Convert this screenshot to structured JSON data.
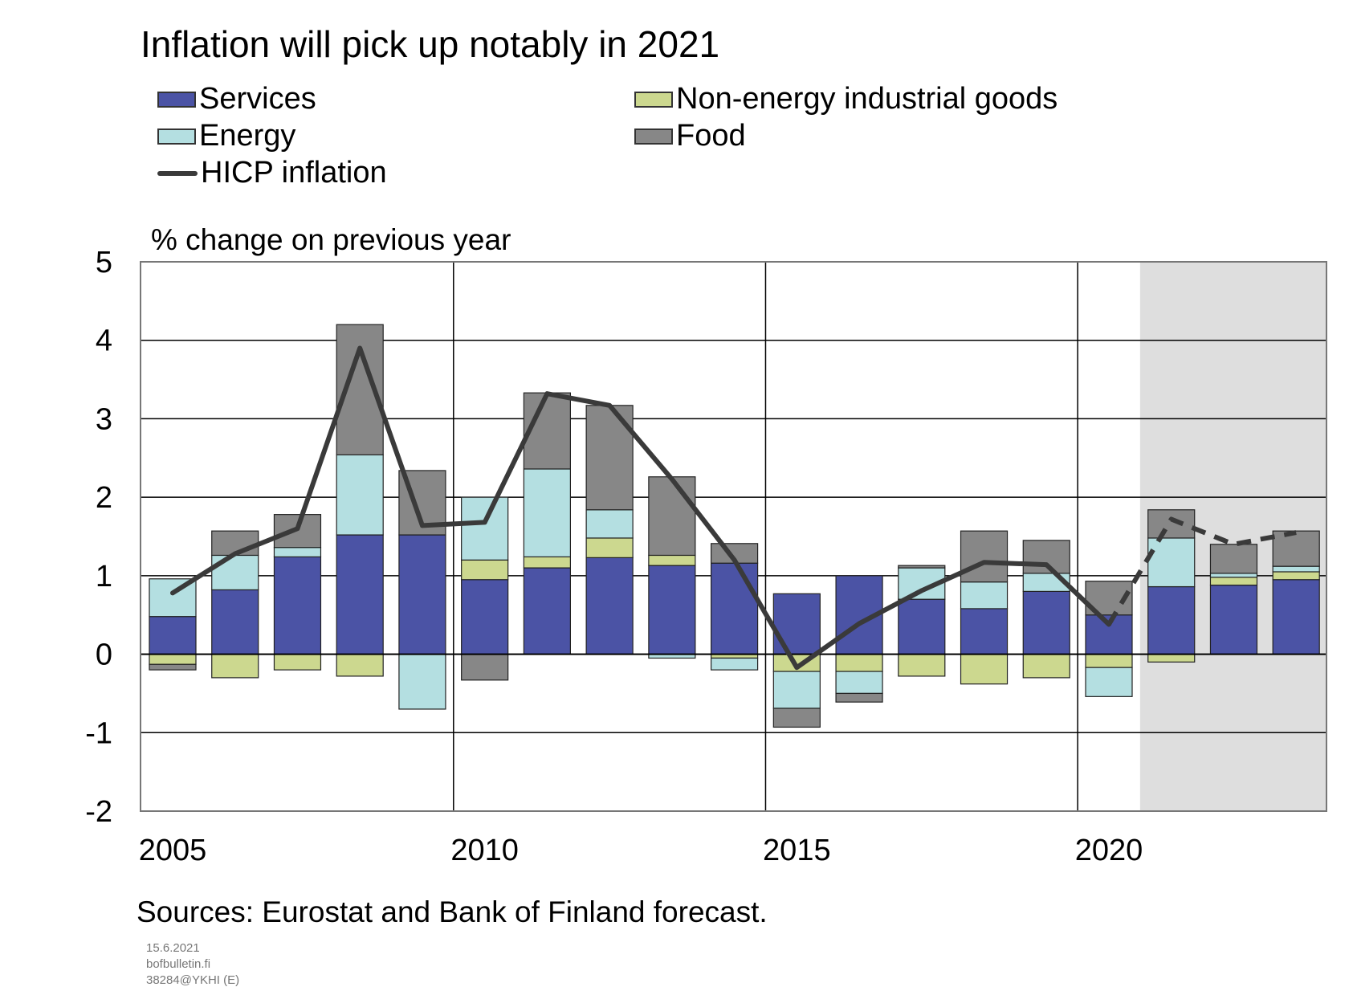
{
  "title": "Inflation will pick up notably in 2021",
  "unit_label": "% change on previous year",
  "source": "Sources: Eurostat and Bank of Finland forecast.",
  "footer": {
    "date": "15.6.2021",
    "site": "bofbulletin.fi",
    "code": "38284@YKHI  (E)"
  },
  "colors": {
    "services": "#4b53a5",
    "non_energy": "#ccd88f",
    "energy": "#b4dfe1",
    "food": "#878787",
    "hicp": "#3a3a3a",
    "forecast_shade": "#dedede"
  },
  "chart_data": {
    "type": "bar",
    "stacked": true,
    "title": "Inflation will pick up notably in 2021",
    "ylabel": "% change on previous year",
    "ylim": [
      -2,
      5
    ],
    "yticks": [
      -2,
      -1,
      0,
      1,
      2,
      3,
      4,
      5
    ],
    "xticks": [
      2005,
      2010,
      2015,
      2020
    ],
    "grid": true,
    "legend_position": "top",
    "categories": [
      2005,
      2006,
      2007,
      2008,
      2009,
      2010,
      2011,
      2012,
      2013,
      2014,
      2015,
      2016,
      2017,
      2018,
      2019,
      2020,
      2021,
      2022,
      2023
    ],
    "forecast_from": 2021,
    "series": [
      {
        "name": "Services",
        "key": "services",
        "values": [
          0.48,
          0.82,
          1.24,
          1.52,
          1.52,
          0.95,
          1.1,
          1.23,
          1.13,
          1.16,
          0.77,
          1.0,
          0.7,
          0.58,
          0.8,
          0.5,
          0.86,
          0.88,
          0.95
        ]
      },
      {
        "name": "Non-energy industrial goods",
        "key": "non_energy",
        "values": [
          -0.13,
          -0.3,
          -0.2,
          -0.28,
          0.0,
          0.25,
          0.14,
          0.25,
          0.13,
          -0.05,
          -0.22,
          -0.22,
          -0.28,
          -0.38,
          -0.3,
          -0.17,
          -0.1,
          0.1,
          0.1
        ]
      },
      {
        "name": "Energy",
        "key": "energy",
        "values": [
          0.48,
          0.44,
          0.12,
          1.02,
          -0.7,
          0.8,
          1.12,
          0.36,
          -0.05,
          -0.15,
          -0.47,
          -0.28,
          0.4,
          0.34,
          0.23,
          -0.37,
          0.62,
          0.05,
          0.07
        ]
      },
      {
        "name": "Food",
        "key": "food",
        "values": [
          -0.07,
          0.31,
          0.42,
          1.66,
          0.82,
          -0.33,
          0.97,
          1.33,
          1.0,
          0.25,
          -0.24,
          -0.11,
          0.03,
          0.65,
          0.42,
          0.43,
          0.36,
          0.37,
          0.45
        ]
      }
    ],
    "line_series": {
      "name": "HICP inflation",
      "key": "hicp",
      "values": [
        0.78,
        1.28,
        1.6,
        3.9,
        1.64,
        1.68,
        3.32,
        3.17,
        2.23,
        1.2,
        -0.17,
        0.39,
        0.81,
        1.17,
        1.14,
        0.38,
        1.72,
        1.4,
        1.55
      ]
    }
  }
}
